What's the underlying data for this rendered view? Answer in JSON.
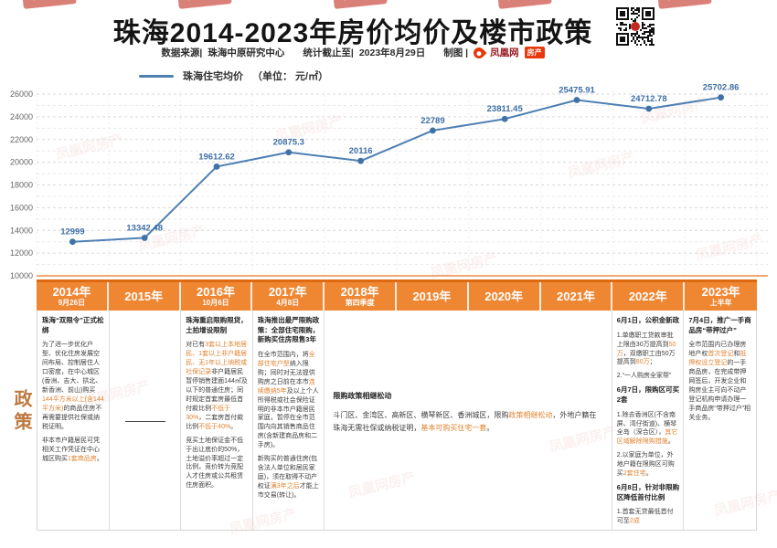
{
  "header": {
    "title": "珠海2014-2023年房价均价及楼市政策",
    "source_label": "数据来源|",
    "source_value": "珠海中原研究中心",
    "deadline_label": "统计截止至|",
    "deadline_value": "2023年8月29日",
    "credit_label": "制图 |",
    "brand_name": "凤凰网",
    "brand_badge": "房产"
  },
  "legend": {
    "label": "珠海住宅均价",
    "unit": "（单位： 元/㎡）"
  },
  "watermark": {
    "text": "凤凰网房产"
  },
  "chart_data": {
    "type": "line",
    "title": "珠海住宅均价",
    "ylabel": "元/㎡",
    "categories": [
      "2014年",
      "2015年",
      "2016年",
      "2017年",
      "2018年",
      "2019年",
      "2020年",
      "2021年",
      "2022年",
      "2023年上半年"
    ],
    "values": [
      12999,
      13342.48,
      19612.62,
      20875.3,
      20116,
      22789,
      23811.45,
      25475.91,
      24712.78,
      25702.86
    ],
    "labels": [
      "12999",
      "13342.48",
      "19612.62",
      "20875.3",
      "20116",
      "22789",
      "23811.45",
      "25475.91",
      "24712.78",
      "25702.86"
    ],
    "ylim": [
      10000,
      26000
    ],
    "y_major_step": 2000,
    "y_minor_step": 1000,
    "grid": true,
    "line_color": "#4E80B4",
    "marker_color": "#3F72A6",
    "label_color": "#3E6FA5",
    "axis_color": "#F2A875",
    "legend_position": "top-left"
  },
  "table": {
    "side_label": "政策",
    "columns": [
      {
        "year": "2014年",
        "sub": "9月26日"
      },
      {
        "year": "2015年",
        "sub": ""
      },
      {
        "year": "2016年",
        "sub": "10月6日"
      },
      {
        "year": "2017年",
        "sub": "4月8日"
      },
      {
        "year": "2018年",
        "sub": "第四季度"
      },
      {
        "year": "2019年",
        "sub": ""
      },
      {
        "year": "2020年",
        "sub": ""
      },
      {
        "year": "2021年",
        "sub": ""
      },
      {
        "year": "2022年",
        "sub": ""
      },
      {
        "year": "2023年",
        "sub": "上半年"
      }
    ],
    "cells": [
      {
        "span": 1,
        "name": "policy-2014",
        "blocks": [
          {
            "type": "title",
            "segs": [
              {
                "t": "珠海“双限令”正式松绑"
              }
            ]
          },
          {
            "type": "p",
            "segs": [
              {
                "t": "为了进一步优化户型、优化住房发展空间布局、控制居住人口密度，在中心城区(香洲、吉大、拱北、新香洲、前山)购买"
              },
              {
                "t": "144平方米以上(含144平方米)",
                "hl": true
              },
              {
                "t": "的商品住房不再需要提供社保或纳税证明。"
              }
            ]
          },
          {
            "type": "p",
            "segs": [
              {
                "t": "非本市户籍居民可凭相关工作凭证在中心城区购买"
              },
              {
                "t": "1套商品房",
                "hl": true
              },
              {
                "t": "。"
              }
            ]
          }
        ]
      },
      {
        "span": 1,
        "name": "policy-2015",
        "blocks": [
          {
            "type": "dash"
          }
        ]
      },
      {
        "span": 1,
        "name": "policy-2016",
        "blocks": [
          {
            "type": "title",
            "segs": [
              {
                "t": "珠海重启限购限贷，土拍增设限制"
              }
            ]
          },
          {
            "type": "p",
            "segs": [
              {
                "t": "对已有"
              },
              {
                "t": "3套以上本地居民、1套以上非户籍居民、无1年以上纳税或社保记录",
                "hl": true
              },
              {
                "t": "非户籍居民暂停销售建面144㎡及以下的普通住房；同时规定首套房最低首付款比例"
              },
              {
                "t": "不低于30%",
                "hl": true
              },
              {
                "t": "，二套房首付款比例"
              },
              {
                "t": "不低于40%",
                "hl": true
              },
              {
                "t": "。"
              }
            ]
          },
          {
            "type": "p",
            "segs": [
              {
                "t": "竞买土地保证金不低于出让底价的50%，土地溢价率超过一定比例，竞价转为竞配人才住房或公共租赁住房面积。"
              }
            ]
          }
        ]
      },
      {
        "span": 1,
        "name": "policy-2017",
        "blocks": [
          {
            "type": "title",
            "segs": [
              {
                "t": "珠海推出最严限购政策：全部住宅限购，新购买住房限售3年"
              }
            ]
          },
          {
            "type": "p",
            "segs": [
              {
                "t": "在全市范围内，将"
              },
              {
                "t": "全部住宅户型",
                "hl": true
              },
              {
                "t": "纳入限购；同时对无法提供购房之日前在本市"
              },
              {
                "t": "连续缴纳5年",
                "hl": true
              },
              {
                "t": "及以上个人所得税或社会保险证明的非本市户籍居民家庭，暂停在全市范围内向其销售商品住房(含新建商品房和二手房)。"
              }
            ]
          },
          {
            "type": "p",
            "segs": [
              {
                "t": "新购买的普通住房(包含法人单位和居民家庭)，须在取得不动产权证"
              },
              {
                "t": "满3年之后",
                "hl": true
              },
              {
                "t": "才能上市交易(转让)。"
              }
            ]
          }
        ]
      },
      {
        "span": 4,
        "name": "policy-2018-2021",
        "cls": "merged",
        "blocks": [
          {
            "type": "title",
            "segs": [
              {
                "t": "限购政策相继松动"
              }
            ]
          },
          {
            "type": "p",
            "segs": [
              {
                "t": "斗门区、金湾区、高新区、横琴新区、香洲城区，限购"
              },
              {
                "t": "政策相继松动",
                "hl": true
              },
              {
                "t": "，外地户籍在珠海无需社保或纳税证明，"
              },
              {
                "t": "基本可购买住宅一套",
                "hl": true
              },
              {
                "t": "。"
              }
            ]
          }
        ]
      },
      {
        "span": 1,
        "name": "policy-2022",
        "blocks": [
          {
            "type": "title",
            "segs": [
              {
                "t": "6月1日，公积金新政"
              }
            ]
          },
          {
            "type": "p",
            "segs": [
              {
                "t": "1.单缴职工贷款审批上限由30万提高到"
              },
              {
                "t": "50万",
                "hl": true
              },
              {
                "t": "，双缴职工由50万提高到"
              },
              {
                "t": "80万",
                "hl": true
              },
              {
                "t": "；"
              }
            ]
          },
          {
            "type": "p",
            "segs": [
              {
                "t": "2.“一人购房全家帮”"
              }
            ]
          },
          {
            "type": "title",
            "segs": [
              {
                "t": "6月7日，限购区可买2套"
              }
            ]
          },
          {
            "type": "p",
            "segs": [
              {
                "t": "1.除去香洲区(不含南屏、湾仔街道)、横琴全岛（深合区），"
              },
              {
                "t": "其它区域解除限购措施",
                "hl": true
              },
              {
                "t": "。"
              }
            ]
          },
          {
            "type": "p",
            "segs": [
              {
                "t": "2.以家庭为单位，外地户籍在限购区可购买"
              },
              {
                "t": "2套住宅",
                "hl": true
              },
              {
                "t": "。"
              }
            ]
          },
          {
            "type": "title",
            "segs": [
              {
                "t": "6月8日，针对非限购区降低首付比例"
              }
            ]
          },
          {
            "type": "p",
            "segs": [
              {
                "t": "1.首套无贷最低首付可至"
              },
              {
                "t": "2成",
                "hl": true
              }
            ]
          },
          {
            "type": "p",
            "segs": [
              {
                "t": "2.有1套贷款未结清也可最低做到"
              },
              {
                "t": "3成首付",
                "hl": true
              }
            ]
          }
        ]
      },
      {
        "span": 1,
        "name": "policy-2023",
        "blocks": [
          {
            "type": "title",
            "segs": [
              {
                "t": "7月4日，推广一手商品房“带押过户”"
              }
            ]
          },
          {
            "type": "p",
            "segs": [
              {
                "t": "全市范围内已办理房地产权"
              },
              {
                "t": "首次登记",
                "hl": true
              },
              {
                "t": "和"
              },
              {
                "t": "抵押权设立登记",
                "hl": true
              },
              {
                "t": "的一手商品房，在完成带押网签后，开发企业和购房业主可向不动产登记机构申请办理一手商品房“带押过户”相关业务。"
              }
            ]
          }
        ]
      }
    ]
  }
}
